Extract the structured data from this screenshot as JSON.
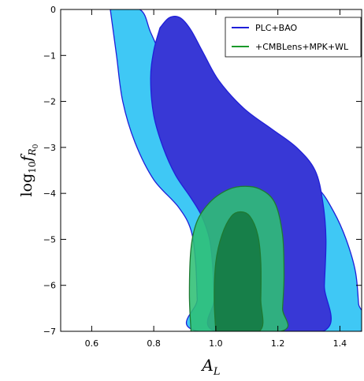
{
  "chart_data": {
    "type": "contour",
    "xlabel_base": "A",
    "xlabel_sub": "L",
    "ylabel_base": "log",
    "ylabel_base_sub": "10",
    "ylabel_f": "f",
    "ylabel_f_sub": "R",
    "ylabel_f_subsub": "0",
    "xlim": [
      0.5,
      1.47
    ],
    "ylim": [
      -7,
      0
    ],
    "xticks": [
      0.6,
      0.8,
      1.0,
      1.2,
      1.4
    ],
    "xtick_labels": [
      "0.6",
      "0.8",
      "1.0",
      "1.2",
      "1.4"
    ],
    "yticks": [
      0,
      -1,
      -2,
      -3,
      -4,
      -5,
      -6,
      -7
    ],
    "ytick_labels": [
      "0",
      "−1",
      "−2",
      "−3",
      "−4",
      "−5",
      "−6",
      "−7"
    ],
    "legend_position": "top-right",
    "series": [
      {
        "name": "PLC+BAO",
        "legend_color": "#1f1fd8",
        "contours": [
          {
            "level": "95%",
            "fill": "#3fc8f5",
            "stroke": "#1f1fd8",
            "points": [
              [
                0.66,
                0.0
              ],
              [
                0.755,
                0.0
              ],
              [
                0.79,
                -0.5
              ],
              [
                0.83,
                -1.1
              ],
              [
                0.88,
                -1.8
              ],
              [
                0.95,
                -2.4
              ],
              [
                1.05,
                -2.95
              ],
              [
                1.15,
                -3.3
              ],
              [
                1.25,
                -3.6
              ],
              [
                1.33,
                -3.9
              ],
              [
                1.38,
                -4.4
              ],
              [
                1.42,
                -5.0
              ],
              [
                1.45,
                -5.7
              ],
              [
                1.46,
                -6.4
              ],
              [
                1.465,
                -7.0
              ],
              [
                0.945,
                -7.0
              ],
              [
                0.94,
                -6.3
              ],
              [
                0.935,
                -5.5
              ],
              [
                0.92,
                -4.8
              ],
              [
                0.88,
                -4.3
              ],
              [
                0.8,
                -3.7
              ],
              [
                0.74,
                -2.9
              ],
              [
                0.7,
                -2.0
              ],
              [
                0.68,
                -1.0
              ],
              [
                0.66,
                0.0
              ]
            ]
          },
          {
            "level": "68%",
            "fill": "#3838d6",
            "stroke": "#1f1fd8",
            "points": [
              [
                0.82,
                -0.4
              ],
              [
                0.85,
                -0.18
              ],
              [
                0.885,
                -0.18
              ],
              [
                0.92,
                -0.45
              ],
              [
                0.96,
                -0.95
              ],
              [
                1.01,
                -1.55
              ],
              [
                1.09,
                -2.15
              ],
              [
                1.18,
                -2.6
              ],
              [
                1.26,
                -3.0
              ],
              [
                1.32,
                -3.5
              ],
              [
                1.345,
                -4.2
              ],
              [
                1.355,
                -5.0
              ],
              [
                1.35,
                -6.0
              ],
              [
                1.345,
                -7.0
              ],
              [
                1.0,
                -7.0
              ],
              [
                0.995,
                -6.3
              ],
              [
                0.99,
                -5.6
              ],
              [
                0.98,
                -5.0
              ],
              [
                0.955,
                -4.5
              ],
              [
                0.92,
                -4.1
              ],
              [
                0.87,
                -3.6
              ],
              [
                0.83,
                -3.0
              ],
              [
                0.8,
                -2.3
              ],
              [
                0.79,
                -1.5
              ],
              [
                0.8,
                -0.9
              ],
              [
                0.82,
                -0.4
              ]
            ]
          }
        ]
      },
      {
        "name": "+CMBLens+MPK+WL",
        "legend_color": "#1a9a2a",
        "contours": [
          {
            "level": "95%",
            "fill": "#2fbf74",
            "fill_opacity": 0.88,
            "stroke": "#1e7a32",
            "points": [
              [
                0.92,
                -7.0
              ],
              [
                0.915,
                -6.2
              ],
              [
                0.92,
                -5.2
              ],
              [
                0.94,
                -4.6
              ],
              [
                0.98,
                -4.2
              ],
              [
                1.03,
                -3.95
              ],
              [
                1.08,
                -3.85
              ],
              [
                1.14,
                -3.9
              ],
              [
                1.19,
                -4.2
              ],
              [
                1.215,
                -4.9
              ],
              [
                1.22,
                -5.8
              ],
              [
                1.215,
                -6.5
              ],
              [
                1.21,
                -7.0
              ],
              [
                0.92,
                -7.0
              ]
            ]
          },
          {
            "level": "68%",
            "fill": "#157a42",
            "fill_opacity": 0.9,
            "stroke": "#1e7a32",
            "points": [
              [
                1.0,
                -7.0
              ],
              [
                0.995,
                -6.3
              ],
              [
                1.0,
                -5.5
              ],
              [
                1.02,
                -4.9
              ],
              [
                1.05,
                -4.5
              ],
              [
                1.08,
                -4.4
              ],
              [
                1.11,
                -4.5
              ],
              [
                1.135,
                -4.9
              ],
              [
                1.145,
                -5.5
              ],
              [
                1.145,
                -6.3
              ],
              [
                1.14,
                -7.0
              ],
              [
                1.0,
                -7.0
              ]
            ]
          }
        ]
      }
    ]
  }
}
